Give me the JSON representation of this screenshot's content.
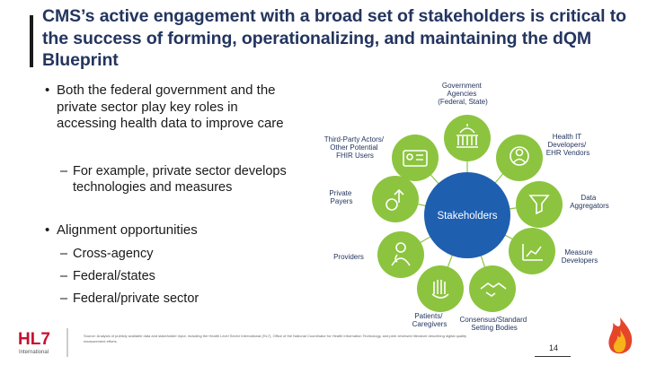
{
  "slide": {
    "title": "CMS’s active engagement with a broad set of stakeholders is critical to the success of forming, operationalizing, and maintaining the dQM Blueprint",
    "bullets": [
      {
        "text": "Both the federal government and the private sector play key roles in accessing health data to improve care",
        "subs": [
          "For example, private sector develops technologies and measures"
        ]
      },
      {
        "text": "Alignment opportunities",
        "subs": [
          "Cross-agency",
          "Federal/states",
          "Federal/private sector"
        ]
      }
    ],
    "bullet_glyph": "•",
    "dash_glyph": "–",
    "footnote": "Source: Analysis of publicly available data and stakeholder input, including the Health Level Seven International (HL7), Office of the National Coordinator for Health Information Technology, and peer-reviewed literature describing digital quality measurement efforts.",
    "page_number": "14",
    "logo": {
      "main": "HL7",
      "sub": "International"
    }
  },
  "diagram": {
    "center": "Stakeholders",
    "nodes": [
      {
        "label": [
          "Government",
          "Agencies",
          "(Federal, State)"
        ],
        "icon": "capitol-building-icon"
      },
      {
        "label": [
          "Health IT",
          "Developers/",
          "EHR Vendors"
        ],
        "icon": "developer-gear-icon"
      },
      {
        "label": [
          "Data",
          "Aggregators"
        ],
        "icon": "data-funnel-icon"
      },
      {
        "label": [
          "Measure",
          "Developers"
        ],
        "icon": "measure-chart-icon"
      },
      {
        "label": [
          "Consensus/Standard",
          "Setting Bodies"
        ],
        "icon": "handshake-icon"
      },
      {
        "label": [
          "Patients/",
          "Caregivers"
        ],
        "icon": "patient-hand-icon"
      },
      {
        "label": [
          "Providers"
        ],
        "icon": "doctor-icon"
      },
      {
        "label": [
          "Private",
          "Payers"
        ],
        "icon": "payer-coins-icon"
      },
      {
        "label": [
          "Third-Party Actors/",
          "Other Potential",
          "FHIR Users"
        ],
        "icon": "id-card-icon"
      }
    ],
    "colors": {
      "center": "#1f5fb0",
      "ring": "#8cc43f",
      "label": "#23355f",
      "title": "#23355f"
    }
  }
}
